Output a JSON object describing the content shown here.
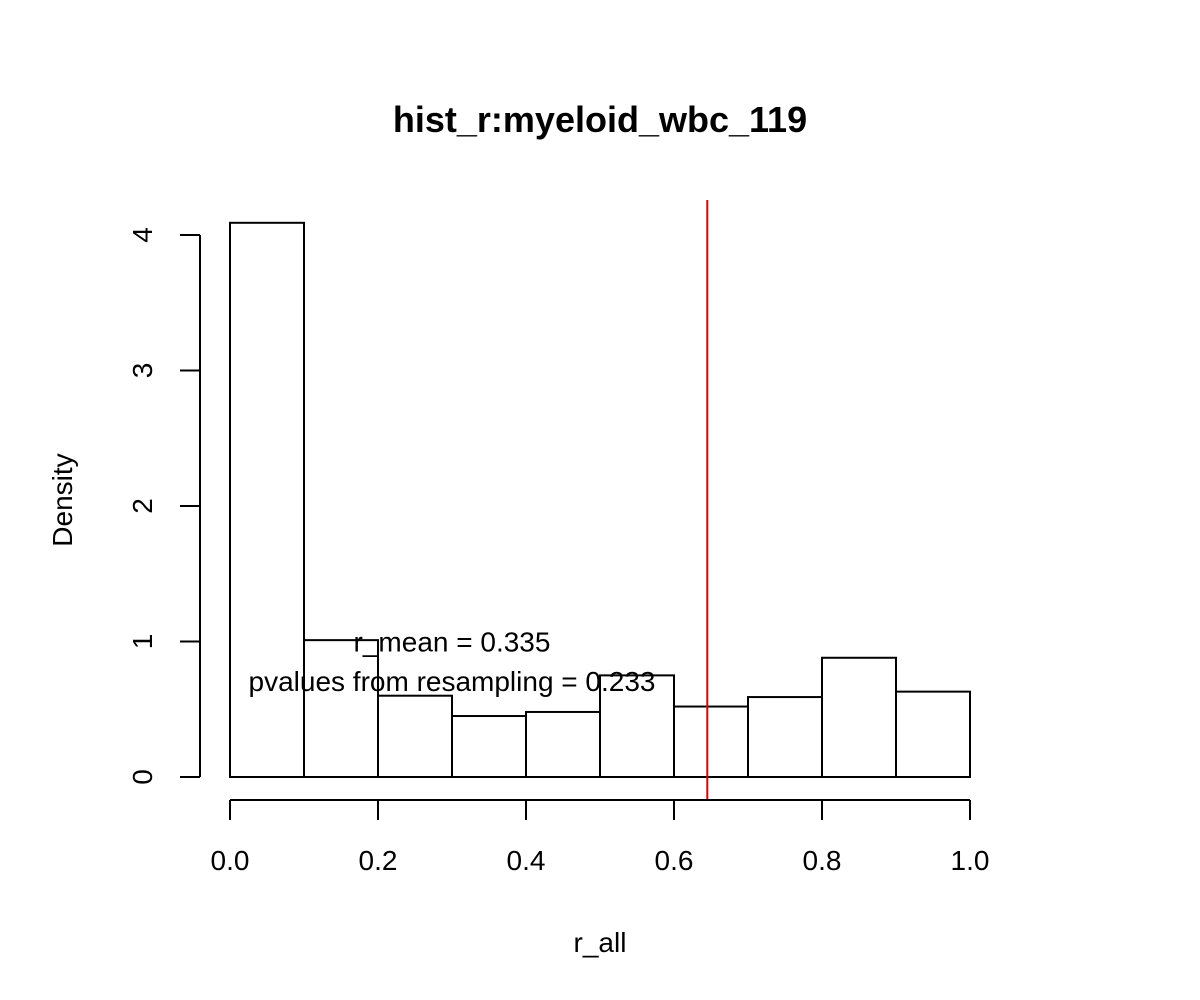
{
  "chart_data": {
    "type": "bar",
    "subtype": "histogram",
    "title": "hist_r:myeloid_wbc_119",
    "xlabel": "r_all",
    "ylabel": "Density",
    "xlim": [
      0,
      1
    ],
    "ylim": [
      0,
      4.2
    ],
    "bins": [
      {
        "start": 0.0,
        "end": 0.1,
        "value": 4.09
      },
      {
        "start": 0.1,
        "end": 0.2,
        "value": 1.01
      },
      {
        "start": 0.2,
        "end": 0.3,
        "value": 0.6
      },
      {
        "start": 0.3,
        "end": 0.4,
        "value": 0.45
      },
      {
        "start": 0.4,
        "end": 0.5,
        "value": 0.48
      },
      {
        "start": 0.5,
        "end": 0.6,
        "value": 0.75
      },
      {
        "start": 0.6,
        "end": 0.7,
        "value": 0.52
      },
      {
        "start": 0.7,
        "end": 0.8,
        "value": 0.59
      },
      {
        "start": 0.8,
        "end": 0.9,
        "value": 0.88
      },
      {
        "start": 0.9,
        "end": 1.0,
        "value": 0.63
      }
    ],
    "x_ticks": [
      0.0,
      0.2,
      0.4,
      0.6,
      0.8,
      1.0
    ],
    "x_tick_labels": [
      "0.0",
      "0.2",
      "0.4",
      "0.6",
      "0.8",
      "1.0"
    ],
    "y_ticks": [
      0,
      1,
      2,
      3,
      4
    ],
    "y_tick_labels": [
      "0",
      "1",
      "2",
      "3",
      "4"
    ],
    "vline": {
      "x": 0.645,
      "color": "#dd0000"
    },
    "annotations": [
      {
        "text": "r_mean = 0.335",
        "x": 0.3,
        "y": 1.0
      },
      {
        "text": "pvalues from resampling = 0.233",
        "x": 0.3,
        "y": 0.71
      }
    ],
    "grid": false,
    "legend": "none",
    "bar_fill": "#ffffff",
    "bar_stroke": "#000000"
  }
}
